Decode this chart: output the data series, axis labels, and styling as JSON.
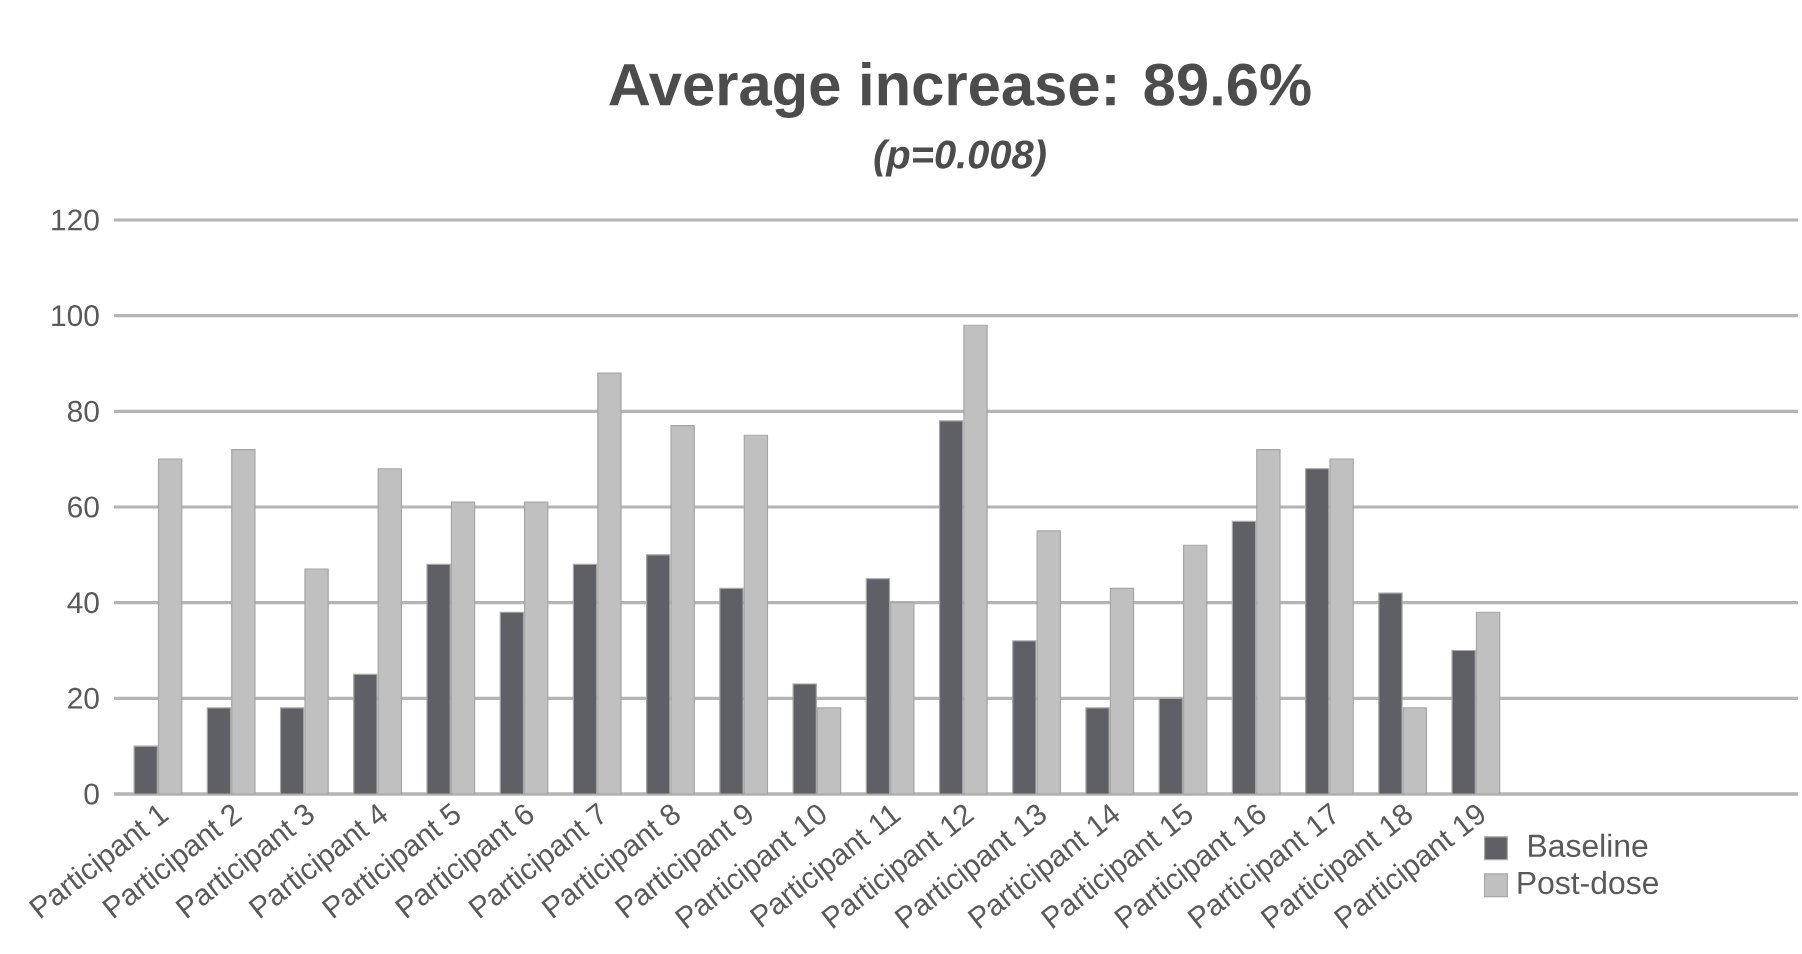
{
  "chart_data": {
    "type": "bar",
    "title": "Average increase: 89.6%",
    "subtitle": "(p=0.008)",
    "categories": [
      "Participant 1",
      "Participant 2",
      "Participant 3",
      "Participant 4",
      "Participant 5",
      "Participant 6",
      "Participant 7",
      "Participant 8",
      "Participant 9",
      "Participant 10",
      "Participant 11",
      "Participant 12",
      "Participant 13",
      "Participant 14",
      "Participant 15",
      "Participant 16",
      "Participant 17",
      "Participant 18",
      "Participant 19",
      null,
      null,
      null,
      null
    ],
    "series": [
      {
        "name": "Baseline",
        "color": "#5f5f66",
        "values": [
          10,
          18,
          18,
          25,
          48,
          38,
          48,
          50,
          43,
          23,
          45,
          78,
          32,
          18,
          20,
          57,
          68,
          42,
          30,
          null,
          null,
          null,
          null
        ]
      },
      {
        "name": "Post-dose",
        "color": "#c0c0c0",
        "values": [
          70,
          72,
          47,
          68,
          61,
          61,
          88,
          77,
          75,
          18,
          40,
          98,
          55,
          43,
          52,
          72,
          70,
          18,
          38,
          null,
          null,
          null,
          null
        ]
      }
    ],
    "ylim": [
      0,
      120
    ],
    "yticks": [
      0,
      20,
      40,
      60,
      80,
      100,
      120
    ],
    "grid": "y",
    "legend": "bottom"
  }
}
